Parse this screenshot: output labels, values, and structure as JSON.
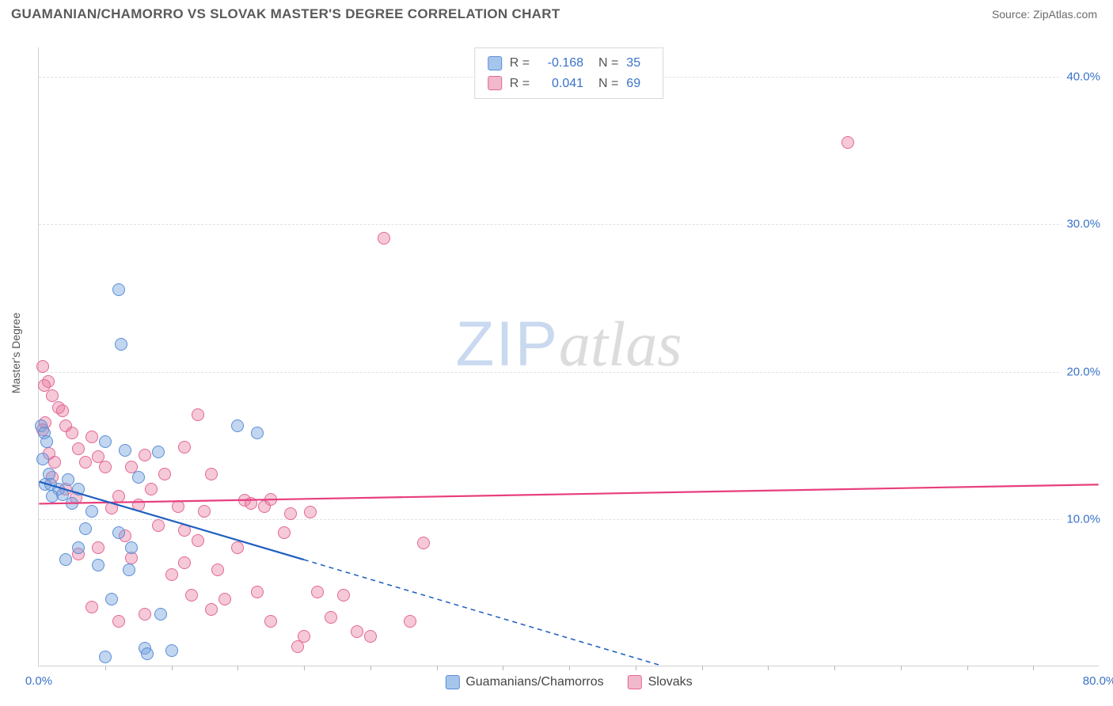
{
  "title": "GUAMANIAN/CHAMORRO VS SLOVAK MASTER'S DEGREE CORRELATION CHART",
  "source": "Source: ZipAtlas.com",
  "ylabel": "Master's Degree",
  "watermark": {
    "zip": "ZIP",
    "atlas": "atlas"
  },
  "chart": {
    "type": "scatter",
    "background_color": "#ffffff",
    "grid_color": "#e0e0e0",
    "axis_color": "#d0d0d0",
    "xlim": [
      0,
      80
    ],
    "ylim": [
      0,
      42
    ],
    "xticks_major": [
      0,
      80
    ],
    "xticks_minor": [
      5,
      10,
      15,
      20,
      25,
      30,
      35,
      40,
      45,
      50,
      55,
      60,
      65,
      70,
      75
    ],
    "yticks": [
      10,
      20,
      30,
      40
    ],
    "xtick_labels": [
      "0.0%",
      "80.0%"
    ],
    "ytick_labels": [
      "10.0%",
      "20.0%",
      "30.0%",
      "40.0%"
    ],
    "label_fontsize": 15,
    "label_color": "#3a72c9",
    "series": [
      {
        "name": "Guamanians/Chamorros",
        "color_fill": "rgba(120,165,222,0.45)",
        "color_stroke": "#5a8dd6",
        "marker_size": 16,
        "r_value": "-0.168",
        "n_value": "35",
        "regression": {
          "x0": 0,
          "y0": 12.5,
          "x1_solid": 20,
          "y1_solid": 7.2,
          "x1_dash": 47,
          "y1_dash": 0,
          "color": "#1f5fc0",
          "width": 2.2,
          "dash": "6 5"
        },
        "points": [
          [
            0.2,
            16.3
          ],
          [
            0.4,
            15.8
          ],
          [
            0.6,
            15.2
          ],
          [
            0.3,
            14.0
          ],
          [
            0.8,
            13.0
          ],
          [
            0.5,
            12.3
          ],
          [
            0.9,
            12.3
          ],
          [
            1.5,
            12.0
          ],
          [
            1.0,
            11.5
          ],
          [
            1.8,
            11.6
          ],
          [
            2.2,
            12.6
          ],
          [
            6.0,
            25.5
          ],
          [
            6.2,
            21.8
          ],
          [
            2.5,
            11.0
          ],
          [
            3.0,
            12.0
          ],
          [
            5.0,
            15.2
          ],
          [
            6.5,
            14.6
          ],
          [
            4.0,
            10.5
          ],
          [
            3.5,
            9.3
          ],
          [
            7.5,
            12.8
          ],
          [
            9.0,
            14.5
          ],
          [
            15.0,
            16.3
          ],
          [
            16.5,
            15.8
          ],
          [
            6.0,
            9.0
          ],
          [
            7.0,
            8.0
          ],
          [
            3.0,
            8.0
          ],
          [
            2.0,
            7.2
          ],
          [
            4.5,
            6.8
          ],
          [
            6.8,
            6.5
          ],
          [
            5.5,
            4.5
          ],
          [
            9.2,
            3.5
          ],
          [
            10.0,
            1.0
          ],
          [
            8.0,
            1.2
          ],
          [
            8.2,
            0.8
          ],
          [
            5.0,
            0.6
          ]
        ]
      },
      {
        "name": "Slovaks",
        "color_fill": "rgba(232,120,158,0.4)",
        "color_stroke": "#e26796",
        "marker_size": 16,
        "r_value": "0.041",
        "n_value": "69",
        "regression": {
          "x0": 0,
          "y0": 11.0,
          "x1_solid": 80,
          "y1_solid": 12.3,
          "color": "#e83e7d",
          "width": 2.2
        },
        "points": [
          [
            0.3,
            20.3
          ],
          [
            0.7,
            19.3
          ],
          [
            0.4,
            19.0
          ],
          [
            1.0,
            18.3
          ],
          [
            1.5,
            17.5
          ],
          [
            1.8,
            17.3
          ],
          [
            0.5,
            16.5
          ],
          [
            2.0,
            16.3
          ],
          [
            0.3,
            16.0
          ],
          [
            2.5,
            15.8
          ],
          [
            3.0,
            14.7
          ],
          [
            3.5,
            13.8
          ],
          [
            4.0,
            15.5
          ],
          [
            4.5,
            14.2
          ],
          [
            5.0,
            13.5
          ],
          [
            7.0,
            13.5
          ],
          [
            12.0,
            17.0
          ],
          [
            8.0,
            14.3
          ],
          [
            9.5,
            13.0
          ],
          [
            8.5,
            12.0
          ],
          [
            11.0,
            14.8
          ],
          [
            13.0,
            13.0
          ],
          [
            6.0,
            11.5
          ],
          [
            5.5,
            10.7
          ],
          [
            7.5,
            10.9
          ],
          [
            10.5,
            10.8
          ],
          [
            12.5,
            10.5
          ],
          [
            15.5,
            11.2
          ],
          [
            16.0,
            11.0
          ],
          [
            17.0,
            10.8
          ],
          [
            17.5,
            11.3
          ],
          [
            19.0,
            10.3
          ],
          [
            20.5,
            10.4
          ],
          [
            11.0,
            9.2
          ],
          [
            9.0,
            9.5
          ],
          [
            6.5,
            8.8
          ],
          [
            4.5,
            8.0
          ],
          [
            3.0,
            7.6
          ],
          [
            7.0,
            7.3
          ],
          [
            12.0,
            8.5
          ],
          [
            15.0,
            8.0
          ],
          [
            10.0,
            6.2
          ],
          [
            13.5,
            6.5
          ],
          [
            11.5,
            4.8
          ],
          [
            13.0,
            3.8
          ],
          [
            16.5,
            5.0
          ],
          [
            18.5,
            9.0
          ],
          [
            21.0,
            5.0
          ],
          [
            22.0,
            3.3
          ],
          [
            20.0,
            2.0
          ],
          [
            23.0,
            4.8
          ],
          [
            24.0,
            2.3
          ],
          [
            25.0,
            2.0
          ],
          [
            28.0,
            3.0
          ],
          [
            29.0,
            8.3
          ],
          [
            8.0,
            3.5
          ],
          [
            6.0,
            3.0
          ],
          [
            4.0,
            4.0
          ],
          [
            26.0,
            29.0
          ],
          [
            61.0,
            35.5
          ],
          [
            1.0,
            12.8
          ],
          [
            2.0,
            12.0
          ],
          [
            2.8,
            11.4
          ],
          [
            1.2,
            13.8
          ],
          [
            0.8,
            14.4
          ],
          [
            14.0,
            4.5
          ],
          [
            17.5,
            3.0
          ],
          [
            19.5,
            1.3
          ],
          [
            11.0,
            7.0
          ]
        ]
      }
    ],
    "legend_swatches": {
      "guamanian": {
        "fill": "#a6c5ec",
        "stroke": "#5a8dd6"
      },
      "slovak": {
        "fill": "#f2b8cc",
        "stroke": "#e26796"
      }
    }
  }
}
